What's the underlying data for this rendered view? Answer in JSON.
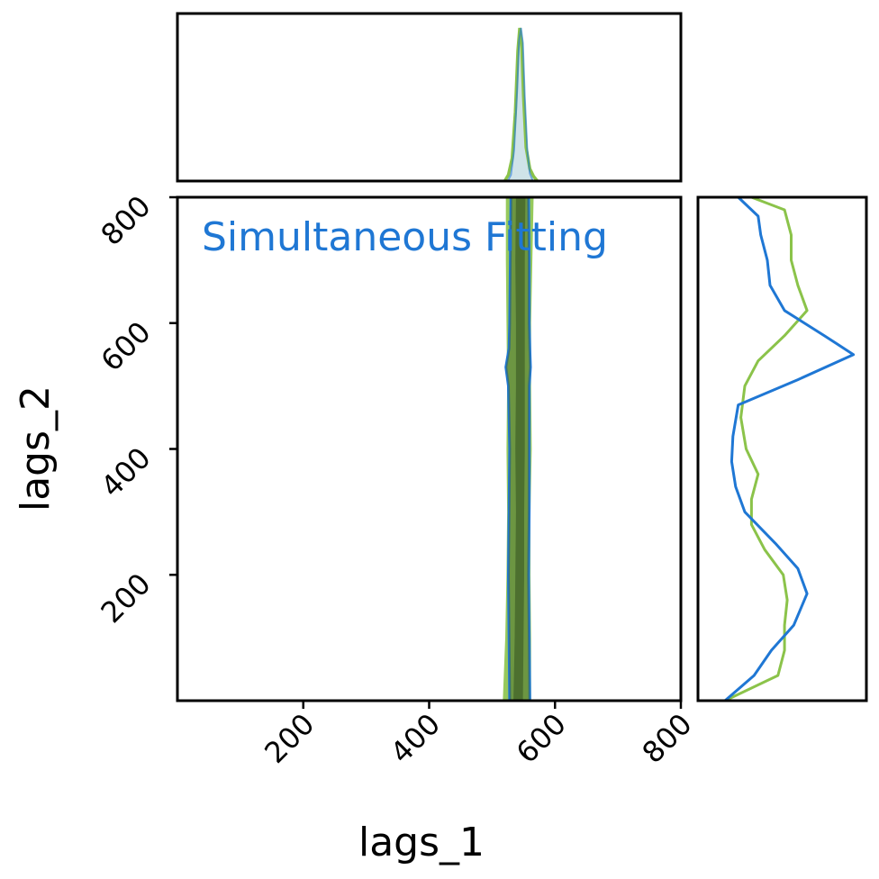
{
  "chart_data": {
    "type": "line",
    "annotation": "Simultaneous Fitting",
    "xlabel": "lags_1",
    "ylabel": "lags_2",
    "xlim": [
      0,
      800
    ],
    "ylim": [
      0,
      800
    ],
    "xticks": [
      200,
      400,
      600,
      800
    ],
    "yticks": [
      200,
      400,
      600,
      800
    ],
    "colors": {
      "blue": "#1f77d4",
      "green": "#8bc34a",
      "dark_green": "#4a6b2e",
      "pale_blue": "#cfe3e8"
    },
    "series": [
      {
        "color": "#1f77d4",
        "lags_1_marginal": {
          "x": [
            525,
            530,
            535,
            540,
            543,
            546,
            549,
            552,
            556,
            560,
            565
          ],
          "density": [
            0.0,
            0.04,
            0.2,
            0.6,
            0.92,
            1.0,
            0.9,
            0.55,
            0.2,
            0.05,
            0.0
          ]
        },
        "lags_2_marginal": {
          "y": [
            0,
            40,
            80,
            120,
            170,
            210,
            250,
            300,
            340,
            380,
            420,
            470,
            510,
            550,
            580,
            620,
            660,
            700,
            740,
            770,
            800
          ],
          "density": [
            0.0,
            0.22,
            0.35,
            0.52,
            0.62,
            0.55,
            0.38,
            0.15,
            0.08,
            0.05,
            0.06,
            0.1,
            0.55,
            0.97,
            0.75,
            0.45,
            0.34,
            0.32,
            0.27,
            0.25,
            0.1
          ]
        },
        "lags_1_band": {
          "lags_2": [
            0,
            100,
            200,
            300,
            400,
            500,
            530,
            560,
            600,
            700,
            800
          ],
          "low": [
            528,
            527,
            526,
            527,
            528,
            526,
            522,
            527,
            528,
            529,
            530
          ],
          "high": [
            560,
            559,
            558,
            559,
            559,
            559,
            561,
            560,
            559,
            559,
            558
          ]
        }
      },
      {
        "color": "#8bc34a",
        "lags_1_marginal": {
          "x": [
            520,
            526,
            532,
            537,
            541,
            544,
            547,
            550,
            554,
            560,
            566,
            572
          ],
          "density": [
            0.0,
            0.04,
            0.15,
            0.45,
            0.85,
            1.0,
            0.9,
            0.55,
            0.22,
            0.08,
            0.03,
            0.0
          ]
        },
        "lags_2_marginal": {
          "y": [
            0,
            40,
            80,
            120,
            160,
            200,
            240,
            280,
            320,
            360,
            400,
            450,
            500,
            540,
            580,
            620,
            660,
            700,
            740,
            780,
            800
          ],
          "density": [
            0.0,
            0.4,
            0.45,
            0.45,
            0.47,
            0.44,
            0.3,
            0.2,
            0.2,
            0.25,
            0.16,
            0.12,
            0.15,
            0.25,
            0.45,
            0.62,
            0.55,
            0.5,
            0.5,
            0.45,
            0.2
          ]
        },
        "lags_1_band": {
          "lags_2": [
            0,
            100,
            200,
            300,
            400,
            500,
            600,
            700,
            800
          ],
          "low": [
            517,
            521,
            523,
            524,
            523,
            524,
            523,
            522,
            522
          ],
          "high": [
            562,
            562,
            561,
            561,
            563,
            562,
            562,
            564,
            566
          ]
        },
        "lags_1_core_band": {
          "lags_2": [
            0,
            100,
            200,
            300,
            400,
            500,
            600,
            700,
            800
          ],
          "low": [
            534,
            536,
            537,
            538,
            537,
            538,
            538,
            537,
            538
          ],
          "high": [
            549,
            550,
            551,
            551,
            552,
            552,
            552,
            552,
            553
          ]
        }
      }
    ]
  }
}
